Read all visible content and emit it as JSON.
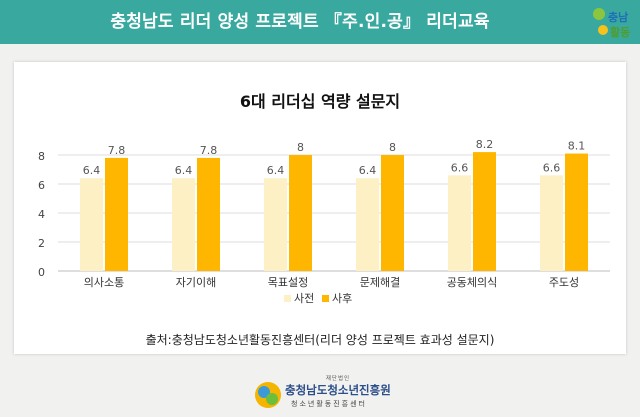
{
  "header": {
    "title": "충청남도 리더 양성 프로젝트 『주.인.공』 리더교육",
    "logo_text": [
      "충남",
      "활동"
    ]
  },
  "source_text": "출처:충청남도청소년활동진흥센터(리더 양성 프로젝트 효과성 설문지)",
  "footer": {
    "small_text": "재단법인",
    "org_name": "충청남도청소년진흥원",
    "org_sub": "청소년활동진흥센터"
  },
  "chart_data": {
    "type": "bar",
    "title": "6대 리더십 역량  설문지",
    "categories": [
      "의사소통",
      "자기이해",
      "목표설정",
      "문제해결",
      "공동체의식",
      "주도성"
    ],
    "series": [
      {
        "name": "사전",
        "values": [
          6.4,
          6.4,
          6.4,
          6.4,
          6.6,
          6.6
        ],
        "labels": [
          "6.4",
          "6.4",
          "6.4",
          "6.4",
          "6.6",
          "6.6"
        ],
        "color": "#fdf0c4"
      },
      {
        "name": "사후",
        "values": [
          7.8,
          7.8,
          8,
          8,
          8.2,
          8.1
        ],
        "labels": [
          "7.8",
          "7.8",
          "8",
          "8",
          "8.2",
          "8.1"
        ],
        "color": "#ffb600"
      }
    ],
    "ylim": [
      0,
      8
    ],
    "yticks": [
      0,
      2,
      4,
      6,
      8
    ],
    "grid": true,
    "legend": "bottom"
  }
}
